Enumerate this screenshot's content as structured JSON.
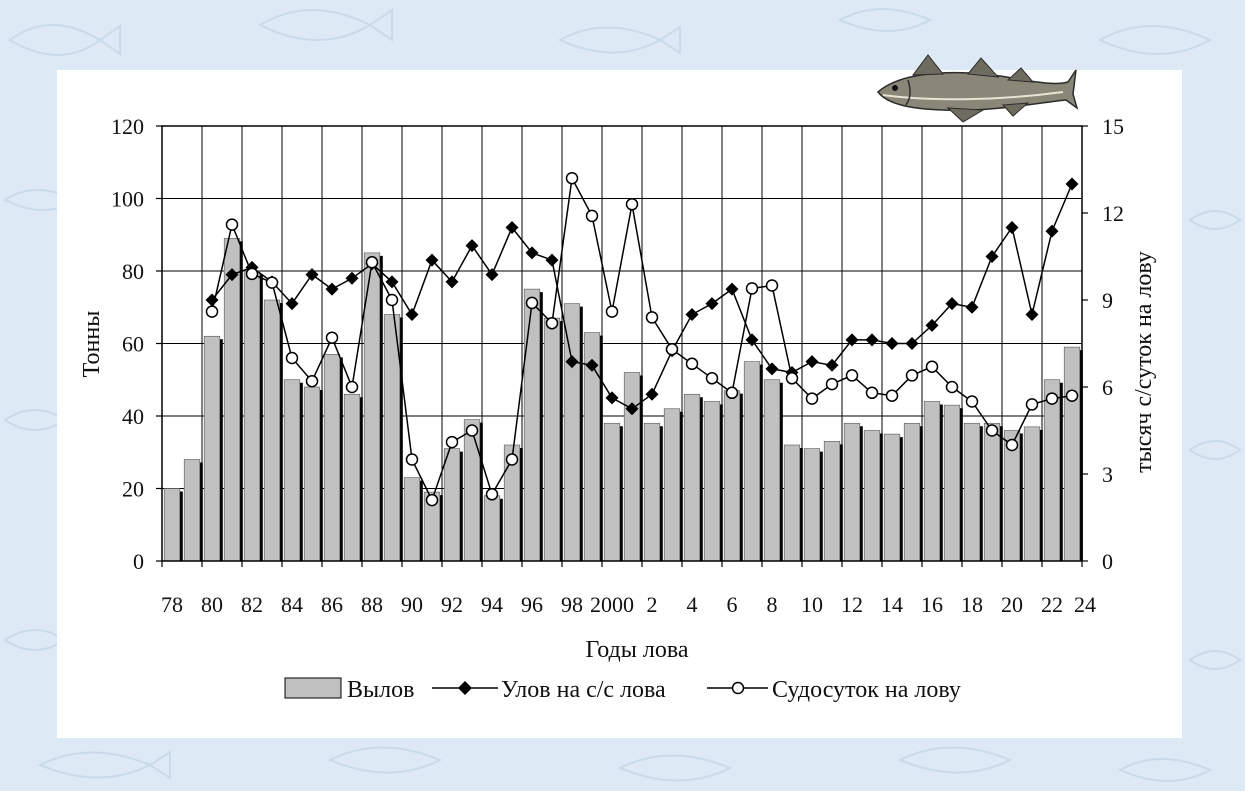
{
  "chart_data": {
    "type": "bar",
    "xlabel": "Годы лова",
    "ylabel_left": "Тонны",
    "ylabel_right": "тысяч с/суток на лову",
    "ylim_left": [
      0,
      120
    ],
    "ylim_right": [
      0,
      15
    ],
    "left_ticks": [
      "0",
      "20",
      "40",
      "60",
      "80",
      "100",
      "120"
    ],
    "right_ticks": [
      "0",
      "3",
      "6",
      "9",
      "12",
      "15"
    ],
    "grid": true,
    "legend_placement": "bottom",
    "x_tick_labels": [
      "78",
      "80",
      "82",
      "84",
      "86",
      "88",
      "90",
      "92",
      "94",
      "96",
      "98",
      "2000",
      "2",
      "4",
      "6",
      "8",
      "10",
      "12",
      "14",
      "16",
      "18",
      "20",
      "22",
      "24"
    ],
    "years": [
      1978,
      1979,
      1980,
      1981,
      1982,
      1983,
      1984,
      1985,
      1986,
      1987,
      1988,
      1989,
      1990,
      1991,
      1992,
      1993,
      1994,
      1995,
      1996,
      1997,
      1998,
      1999,
      2000,
      2001,
      2002,
      2003,
      2004,
      2005,
      2006,
      2007,
      2008,
      2009,
      2010,
      2011,
      2012,
      2013,
      2014,
      2015,
      2016,
      2017,
      2018,
      2019,
      2020,
      2021,
      2022,
      2023
    ],
    "series": [
      {
        "name": "Вылов",
        "type": "bar",
        "axis": "left",
        "color": "#c0c0c0",
        "values": [
          20,
          28,
          62,
          89,
          80,
          72,
          50,
          48,
          57,
          46,
          85,
          68,
          23,
          19,
          31,
          39,
          18,
          32,
          75,
          67,
          71,
          63,
          38,
          52,
          38,
          42,
          46,
          44,
          47,
          55,
          50,
          32,
          31,
          33,
          38,
          36,
          35,
          38,
          44,
          43,
          38,
          38,
          36,
          37,
          50,
          59
        ]
      },
      {
        "name": "Улов на с/с лова",
        "type": "line",
        "axis": "left",
        "color": "#000000",
        "marker": "diamond",
        "values": [
          null,
          null,
          72,
          79,
          81,
          77,
          71,
          79,
          75,
          78,
          82,
          77,
          68,
          83,
          77,
          87,
          79,
          92,
          85,
          83,
          55,
          54,
          45,
          42,
          46,
          58,
          68,
          71,
          75,
          61,
          53,
          52,
          55,
          54,
          61,
          61,
          60,
          60,
          65,
          71,
          70,
          84,
          92,
          68,
          91,
          104
        ]
      },
      {
        "name": "Судосуток на лову",
        "type": "line",
        "axis": "right",
        "color": "#000000",
        "marker": "open-circle",
        "values": [
          null,
          null,
          8.6,
          11.6,
          9.9,
          9.6,
          7.0,
          6.2,
          7.7,
          6.0,
          10.3,
          9.0,
          3.5,
          2.1,
          4.1,
          4.5,
          2.3,
          3.5,
          8.9,
          8.2,
          13.2,
          11.9,
          8.6,
          12.3,
          8.4,
          7.3,
          6.8,
          6.3,
          5.8,
          9.4,
          9.5,
          6.3,
          5.6,
          6.1,
          6.4,
          5.8,
          5.7,
          6.4,
          6.7,
          6.0,
          5.5,
          4.5,
          4.0,
          5.4,
          5.6,
          5.7
        ]
      }
    ]
  },
  "decor": {
    "fish_icon": "cod-fish-illustration",
    "background": "light-blue-fish-pattern"
  }
}
